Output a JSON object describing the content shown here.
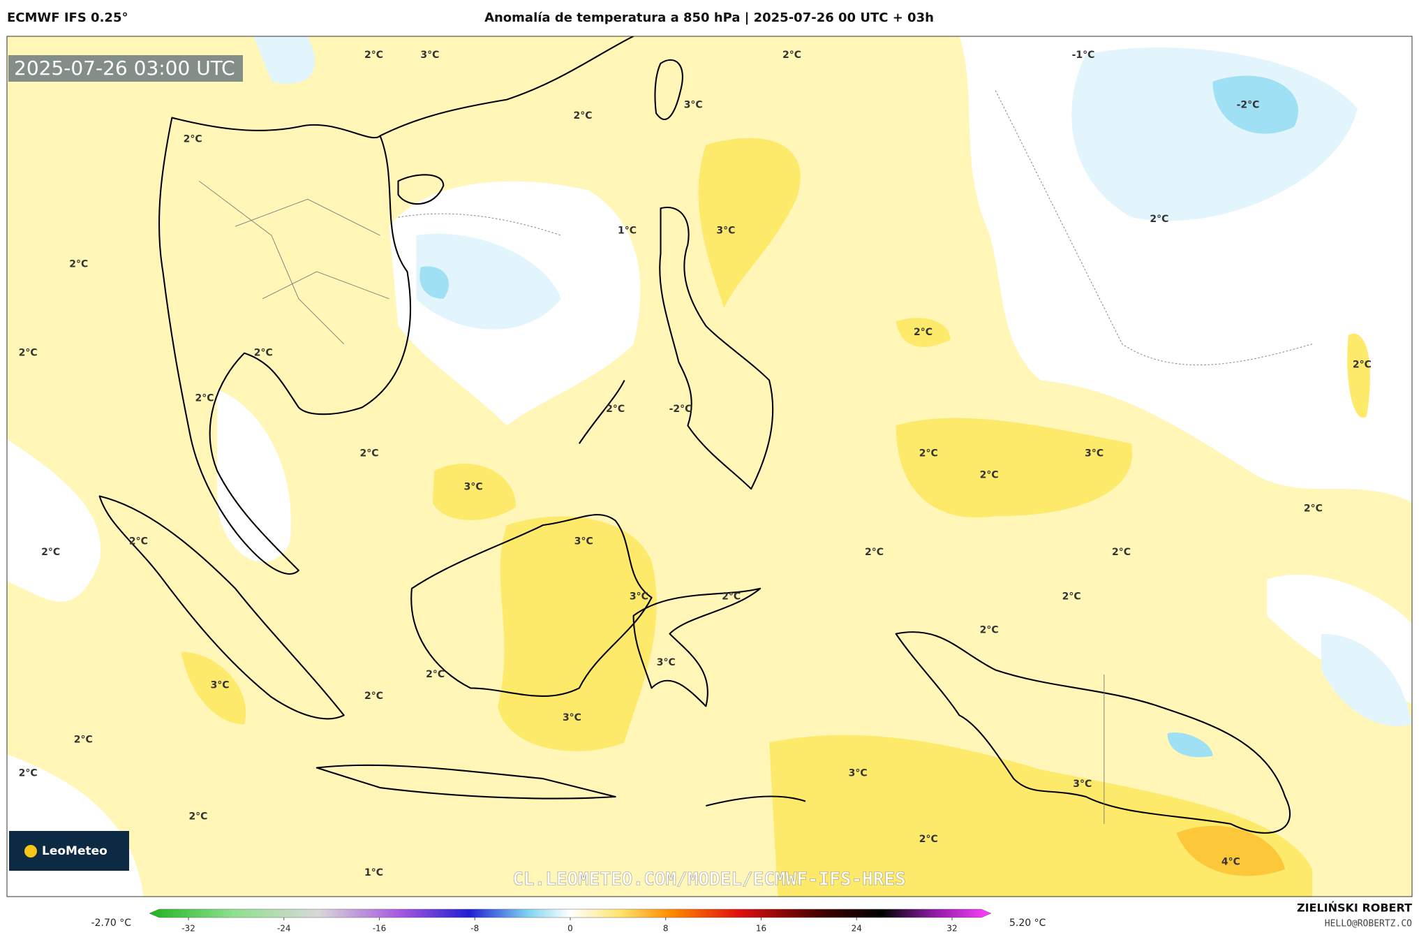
{
  "header": {
    "model": "ECMWF IFS 0.25°",
    "title": "Anomalía de temperatura a 850 hPa | 2025-07-26 00 UTC + 03h"
  },
  "map": {
    "timestamp": "2025-07-26 03:00 UTC",
    "watermark": "CL.LEOMETEO.COM/MODEL/ECMWF-IFS-HRES",
    "logo": "LeoMeteo",
    "contour_labels": [
      "2°C",
      "3°C",
      "2°C",
      "-1°C",
      "3°C",
      "-2°C",
      "2°C",
      "2°C",
      "1°C",
      "3°C",
      "2°C",
      "2°C",
      "2°C",
      "2°C",
      "2°C",
      "2°C",
      "2°C",
      "2°C",
      "-2°C",
      "2°C",
      "2°C",
      "3°C",
      "2°C",
      "3°C",
      "2°C",
      "2°C",
      "2°C",
      "3°C",
      "2°C",
      "2°C",
      "3°C",
      "2°C",
      "2°C",
      "2°C",
      "3°C",
      "2°C",
      "3°C",
      "2°C",
      "3°C",
      "2°C",
      "2°C",
      "3°C",
      "3°C",
      "2°C",
      "2°C",
      "4°C",
      "1°C"
    ]
  },
  "colorbar": {
    "min_label": "-2.70 °C",
    "max_label": "5.20 °C",
    "ticks": [
      -32,
      -24,
      -16,
      -8,
      0,
      8,
      16,
      24,
      32
    ]
  },
  "footer": {
    "author": "ZIELIŃSKI ROBERT",
    "email": "HELLO@ROBERTZ.CO"
  }
}
